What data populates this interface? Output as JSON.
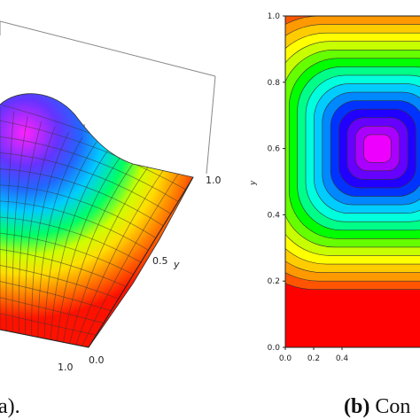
{
  "chart_data": [
    {
      "type": "surface",
      "caption": "a).",
      "axes": {
        "y_ticks": [
          "0.0",
          "0.5",
          "1.0"
        ],
        "y_label": "y",
        "x_ticks": [
          "1.0"
        ]
      },
      "colormap": [
        "#ff0000",
        "#ff9900",
        "#ffff00",
        "#00ff00",
        "#00ffff",
        "#0000ff",
        "#ff00ff"
      ]
    },
    {
      "type": "contour",
      "caption_bold": "(b)",
      "caption_text": "Con",
      "y_ticks": [
        "0.0",
        "0.2",
        "0.4",
        "0.6",
        "0.8",
        "1.0"
      ],
      "x_ticks": [
        "0.0",
        "0.2",
        "0.4"
      ],
      "ylabel": "y",
      "xlim": [
        0,
        1
      ],
      "ylim": [
        0,
        1
      ],
      "center": [
        0.65,
        0.6
      ],
      "levels": [
        "#ff0000",
        "#ff5500",
        "#ff9900",
        "#ffcc00",
        "#ffff00",
        "#c8ff00",
        "#66ff00",
        "#00ff00",
        "#00ff88",
        "#00ffdd",
        "#00ccff",
        "#0088ff",
        "#0033ff",
        "#2200ff",
        "#6600ff",
        "#aa00ff",
        "#ee00ff"
      ]
    }
  ]
}
